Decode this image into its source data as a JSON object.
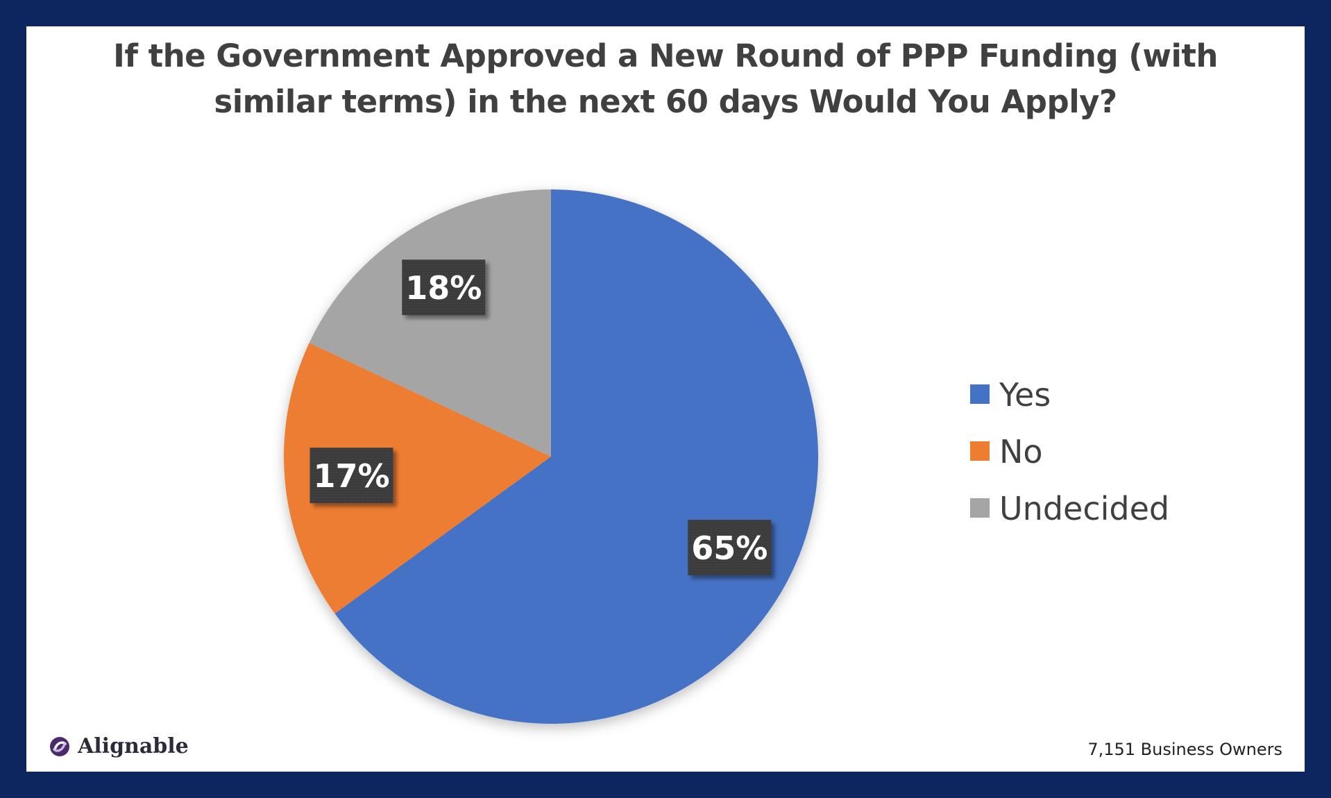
{
  "chart_data": {
    "type": "pie",
    "title_lines": [
      "If the Government Approved a New Round of PPP Funding (with",
      "similar terms) in the next 60 days Would You Apply?"
    ],
    "title": "If the Government Approved a New Round of PPP Funding (with similar terms) in the next 60 days Would You Apply?",
    "categories": [
      "Yes",
      "No",
      "Undecided"
    ],
    "values": [
      65,
      17,
      18
    ],
    "data_labels": [
      "65%",
      "17%",
      "18%"
    ],
    "colors": [
      "#4472c4",
      "#ed7d31",
      "#a5a5a5"
    ],
    "legend_position": "right",
    "start_angle": "12 o'clock, clockwise"
  },
  "footer": {
    "brand": "Alignable",
    "sample": "7,151 Business Owners"
  },
  "colors": {
    "frame": "#0d2660",
    "label_box": "#3a3a3a",
    "title": "#404040"
  }
}
